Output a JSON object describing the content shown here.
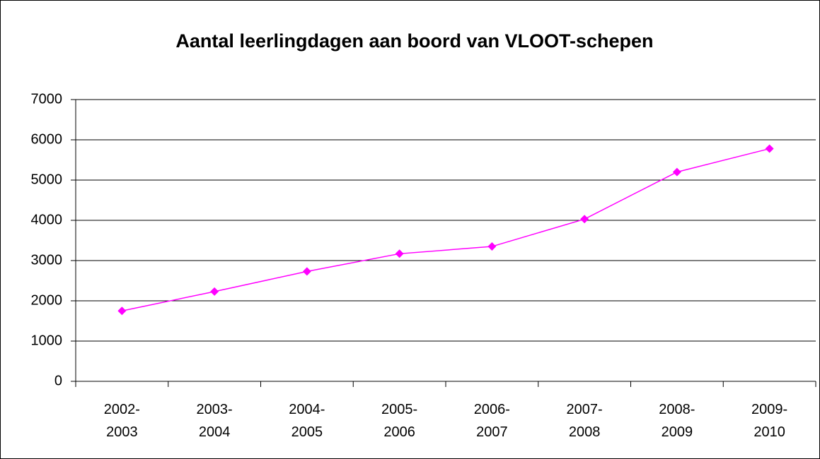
{
  "chart_data": {
    "type": "line",
    "title": "Aantal leerlingdagen aan boord van VLOOT-schepen",
    "categories": [
      "2002-2003",
      "2003-2004",
      "2004-2005",
      "2005-2006",
      "2006-2007",
      "2007-2008",
      "2008-2009",
      "2009-2010"
    ],
    "series": [
      {
        "name": "Leerlingdagen",
        "color": "#ff00ff",
        "values": [
          1750,
          2230,
          2730,
          3170,
          3350,
          4030,
          5200,
          5780
        ]
      }
    ],
    "ylim": [
      0,
      7000
    ],
    "yticks": [
      0,
      1000,
      2000,
      3000,
      4000,
      5000,
      6000,
      7000
    ],
    "grid": true
  }
}
